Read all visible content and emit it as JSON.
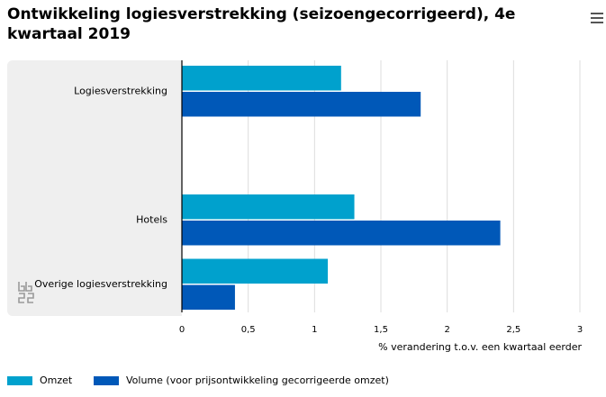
{
  "header": {
    "title": "Ontwikkeling logiesverstrekking (seizoengecorrigeerd), 4e kwartaal 2019"
  },
  "menu": {
    "icon": "hamburger-menu-icon"
  },
  "logo": {
    "icon": "cbs-logo-icon"
  },
  "colors": {
    "omzet": "#00a1cd",
    "volume": "#0058b8",
    "plot_bg": "#efefef",
    "grid": "#dddddd",
    "axis": "#000000"
  },
  "chart_data": {
    "type": "bar",
    "orientation": "horizontal",
    "categories": [
      "Logiesverstrekking",
      "",
      "Hotels",
      "Overige logiesverstrekking"
    ],
    "series": [
      {
        "name": "Omzet",
        "values": [
          1.2,
          null,
          1.3,
          1.1
        ]
      },
      {
        "name": "Volume (voor prijsontwikkeling gecorrigeerde omzet)",
        "values": [
          1.8,
          null,
          2.4,
          0.4
        ]
      }
    ],
    "xlabel": "% verandering t.o.v. een kwartaal eerder",
    "xlim": [
      0,
      3
    ],
    "xticks": [
      0,
      0.5,
      1,
      1.5,
      2,
      2.5,
      3
    ],
    "xtick_labels": [
      "0",
      "0,5",
      "1",
      "1,5",
      "2",
      "2,5",
      "3"
    ],
    "grid": true,
    "legend": "bottom-left"
  }
}
